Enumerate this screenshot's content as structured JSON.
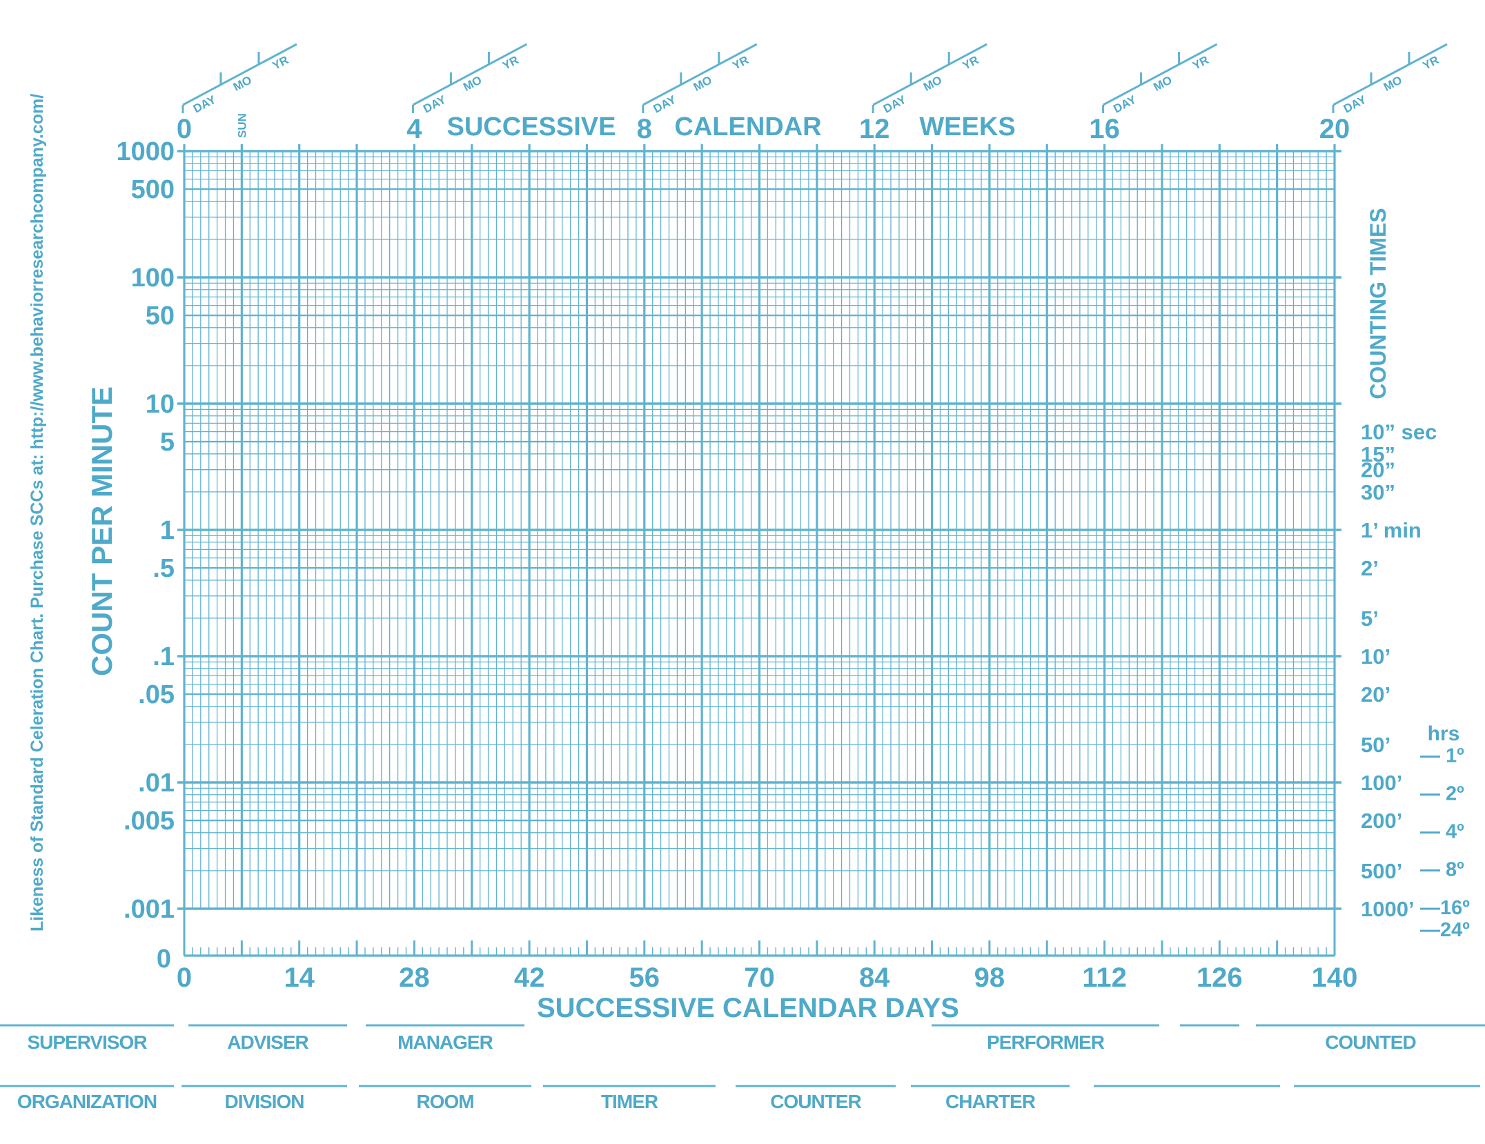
{
  "colors": {
    "line": "#5fb3cf",
    "text": "#4fa9c9",
    "background": "#ffffff"
  },
  "side_note": "Likeness of Standard Celeration Chart. Purchase SCCs at: http://www.behaviorresearchcompany.com/",
  "chart_data": {
    "type": "line",
    "title": "",
    "xlabel": "SUCCESSIVE CALENDAR DAYS",
    "ylabel": "COUNT PER MINUTE",
    "x_scale": "linear",
    "y_scale": "log",
    "xlim": [
      0,
      140
    ],
    "ylim": [
      0.001,
      1000
    ],
    "grid": true,
    "x_ticks": [
      "0",
      "14",
      "28",
      "42",
      "56",
      "70",
      "84",
      "98",
      "112",
      "126",
      "140"
    ],
    "y_ticks": [
      {
        "value": 1000,
        "label": "1000"
      },
      {
        "value": 500,
        "label": "500"
      },
      {
        "value": 100,
        "label": "100"
      },
      {
        "value": 50,
        "label": "50"
      },
      {
        "value": 10,
        "label": "10"
      },
      {
        "value": 5,
        "label": "5"
      },
      {
        "value": 1,
        "label": "1"
      },
      {
        "value": 0.5,
        "label": ".5"
      },
      {
        "value": 0.1,
        "label": ".1"
      },
      {
        "value": 0.05,
        "label": ".05"
      },
      {
        "value": 0.01,
        "label": ".01"
      },
      {
        "value": 0.005,
        "label": ".005"
      },
      {
        "value": 0.001,
        "label": ".001"
      }
    ],
    "zero_label": "0",
    "top_axis": {
      "words": [
        "SUCCESSIVE",
        "CALENDAR",
        "WEEKS"
      ],
      "week_ticks": [
        "0",
        "4",
        "8",
        "12",
        "16",
        "20"
      ],
      "date_labels": [
        "DAY",
        "MO",
        "YR"
      ],
      "sun_label": "SUN"
    },
    "right_axis": {
      "label": "COUNTING TIMES",
      "counting_times": [
        {
          "value": 0.1,
          "label": "10” sec"
        },
        {
          "value": 0.0667,
          "label": "15”"
        },
        {
          "value": 0.05,
          "label": "20”"
        },
        {
          "value": 0.0333,
          "label": "30”"
        },
        {
          "value": 0.01667,
          "label": "1’ min"
        },
        {
          "value": 0.00833,
          "label": "2’"
        },
        {
          "value": 0.00333,
          "label": "5’"
        },
        {
          "value": 0.001667,
          "label": "10’"
        },
        {
          "value": 0.000833,
          "label": "20’"
        },
        {
          "value": 0.000333,
          "label": "50’"
        },
        {
          "value": 0.0001667,
          "label": "100’"
        },
        {
          "value": 8.33e-05,
          "label": "200’"
        },
        {
          "value": 3.33e-05,
          "label": "500’"
        },
        {
          "value": 1.667e-05,
          "label": "1000’"
        }
      ],
      "hours_label": "hrs",
      "hours": [
        "— 1º",
        "— 2º",
        "— 4º",
        "— 8º",
        "—16º",
        "—24º"
      ]
    },
    "series": []
  },
  "footer": {
    "row1": [
      "SUPERVISOR",
      "ADVISER",
      "MANAGER",
      "PERFORMER",
      "COUNTED"
    ],
    "row2": [
      "ORGANIZATION",
      "DIVISION",
      "ROOM",
      "TIMER",
      "COUNTER",
      "CHARTER"
    ]
  }
}
